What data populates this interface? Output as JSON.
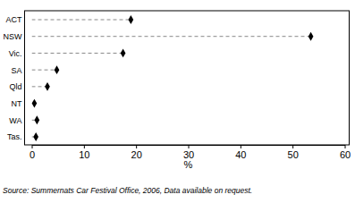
{
  "chart_data": {
    "type": "dot",
    "orientation": "horizontal",
    "categories": [
      "ACT",
      "NSW",
      "Vic.",
      "SA",
      "Qld",
      "NT",
      "WA",
      "Tas."
    ],
    "values": [
      19,
      53.5,
      17.5,
      4.8,
      3,
      0.5,
      1,
      0.8
    ],
    "color": "#000000",
    "marker": "diamond",
    "line_style": "dashed",
    "x_label": "%",
    "xlim": [
      0,
      60
    ],
    "xticks": [
      0,
      10,
      20,
      30,
      40,
      50,
      60
    ],
    "grid": false,
    "source": "Source: Summernats Car Festival Office, 2006, Data available on request."
  }
}
